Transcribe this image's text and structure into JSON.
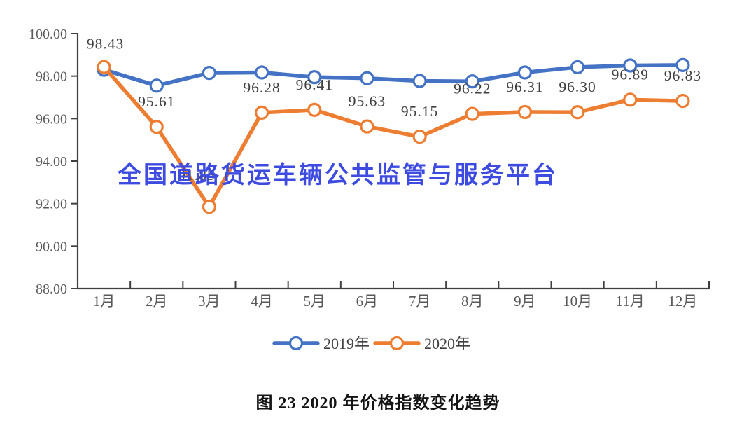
{
  "page": {
    "background": "#ffffff"
  },
  "watermark": {
    "text": "全国道路货运车辆公共监管与服务平台",
    "color": "#3d4be0"
  },
  "caption": {
    "text": "图 23  2020 年价格指数变化趋势"
  },
  "chart_data": {
    "type": "line",
    "title": "",
    "xlabel": "",
    "ylabel": "",
    "categories": [
      "1月",
      "2月",
      "3月",
      "4月",
      "5月",
      "6月",
      "7月",
      "8月",
      "9月",
      "10月",
      "11月",
      "12月"
    ],
    "series": [
      {
        "name": "2019年",
        "color": "#4472c4",
        "values": [
          98.3,
          97.55,
          98.15,
          98.17,
          97.95,
          97.9,
          97.77,
          97.75,
          98.17,
          98.42,
          98.5,
          98.52
        ],
        "labels_visible": false,
        "labels": []
      },
      {
        "name": "2020年",
        "color": "#ed7d31",
        "values": [
          98.43,
          95.61,
          91.85,
          96.28,
          96.41,
          95.63,
          95.15,
          96.22,
          96.31,
          96.3,
          96.89,
          96.83
        ],
        "labels_visible": true,
        "labels": [
          "98.43",
          "95.61",
          "91.85",
          "96.28",
          "96.41",
          "95.63",
          "95.15",
          "96.22",
          "96.31",
          "96.30",
          "96.89",
          "96.83"
        ]
      }
    ],
    "ylim": [
      88,
      100
    ],
    "ytick_step": 2,
    "ytick_labels": [
      "88.00",
      "90.00",
      "92.00",
      "94.00",
      "96.00",
      "98.00",
      "100.00"
    ],
    "grid": false,
    "legend_position": "bottom",
    "marker": "circle-open",
    "axis_color": "#404040",
    "tick_label_color": "#595959",
    "data_label_color": "#3f3f3f",
    "legend_label_color": "#404040"
  }
}
